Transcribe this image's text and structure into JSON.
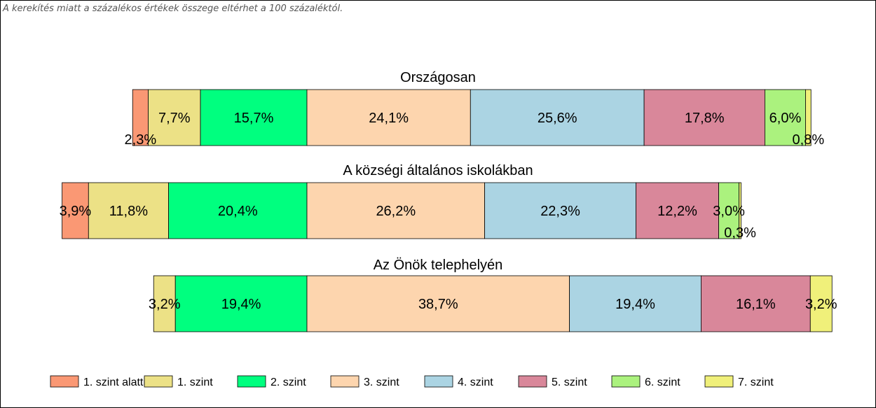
{
  "note": "A kerekítés miatt a  százalékos értékek összege eltérhet a 100 százaléktól.",
  "chart_data": {
    "type": "bar",
    "orientation": "horizontal-stacked",
    "legend_position": "bottom",
    "levels": [
      "1. szint alatti",
      "1. szint",
      "2. szint",
      "3. szint",
      "4. szint",
      "5. szint",
      "6. szint",
      "7. szint"
    ],
    "colors": [
      "#FA9874",
      "#ECE186",
      "#00FF7F",
      "#FDD5AE",
      "#ABD4E3",
      "#D9879A",
      "#ABF27E",
      "#F0F07A"
    ],
    "rows": [
      {
        "title": "Országosan",
        "values": [
          2.3,
          7.7,
          15.7,
          24.1,
          25.6,
          17.8,
          6.0,
          0.8
        ],
        "labels": [
          "2,3%",
          "7,7%",
          "15,7%",
          "24,1%",
          "25,6%",
          "17,8%",
          "6,0%",
          "0,8%"
        ]
      },
      {
        "title": "A községi általános iskolákban",
        "values": [
          3.9,
          11.8,
          20.4,
          26.2,
          22.3,
          12.2,
          3.0,
          0.3
        ],
        "labels": [
          "3,9%",
          "11,8%",
          "20,4%",
          "26,2%",
          "22,3%",
          "12,2%",
          "3,0%",
          "0,3%"
        ]
      },
      {
        "title": "Az Önök telephelyén",
        "values": [
          0,
          3.2,
          19.4,
          38.7,
          19.4,
          16.1,
          0,
          3.2
        ],
        "labels": [
          "",
          "3,2%",
          "19,4%",
          "38,7%",
          "19,4%",
          "16,1%",
          "",
          "3,2%"
        ]
      }
    ]
  }
}
